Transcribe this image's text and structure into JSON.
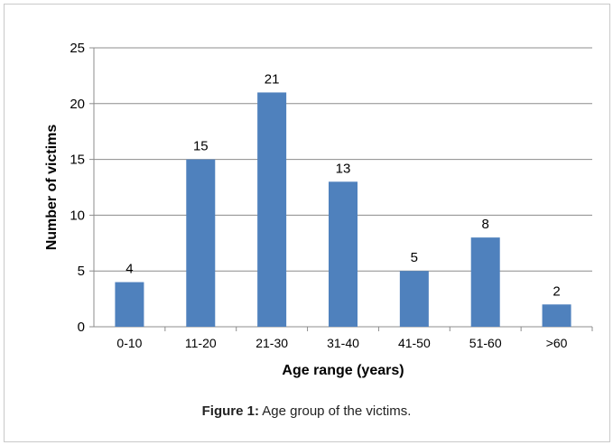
{
  "chart_data": {
    "type": "bar",
    "categories": [
      "0-10",
      "11-20",
      "21-30",
      "31-40",
      "41-50",
      "51-60",
      ">60"
    ],
    "values": [
      4,
      15,
      21,
      13,
      5,
      8,
      2
    ],
    "xlabel": "Age range (years)",
    "ylabel": "Number of victims",
    "ylim": [
      0,
      25
    ],
    "yticks": [
      0,
      5,
      10,
      15,
      20,
      25
    ],
    "grid": true,
    "legend": "none",
    "bar_color": "#4f81bd"
  },
  "caption": {
    "label": "Figure 1:",
    "text": " Age group of the victims."
  }
}
